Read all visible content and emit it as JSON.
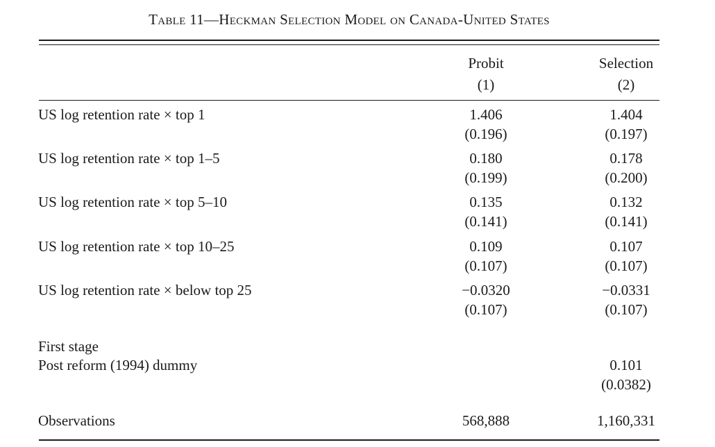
{
  "title": "Table 11—Heckman Selection Model on Canada-United States",
  "columns": [
    {
      "name": "Probit",
      "number": "(1)"
    },
    {
      "name": "Selection",
      "number": "(2)"
    }
  ],
  "rows": [
    {
      "label": "US log retention rate × top 1",
      "c1": {
        "coef": "1.406",
        "se": "(0.196)"
      },
      "c2": {
        "coef": "1.404",
        "se": "(0.197)"
      }
    },
    {
      "label": "US log retention rate × top 1–5",
      "c1": {
        "coef": "0.180",
        "se": "(0.199)"
      },
      "c2": {
        "coef": "0.178",
        "se": "(0.200)"
      }
    },
    {
      "label": "US log retention rate × top 5–10",
      "c1": {
        "coef": "0.135",
        "se": "(0.141)"
      },
      "c2": {
        "coef": "0.132",
        "se": "(0.141)"
      }
    },
    {
      "label": "US log retention rate × top 10–25",
      "c1": {
        "coef": "0.109",
        "se": "(0.107)"
      },
      "c2": {
        "coef": "0.107",
        "se": "(0.107)"
      }
    },
    {
      "label": "US log retention rate × below top 25",
      "c1": {
        "coef": "−0.0320",
        "se": "(0.107)"
      },
      "c2": {
        "coef": "−0.0331",
        "se": "(0.107)"
      }
    }
  ],
  "first_stage": {
    "heading": "First stage",
    "label": "Post reform (1994) dummy",
    "c2": {
      "coef": "0.101",
      "se": "(0.0382)"
    }
  },
  "observations": {
    "label": "Observations",
    "c1": "568,888",
    "c2": "1,160,331"
  }
}
